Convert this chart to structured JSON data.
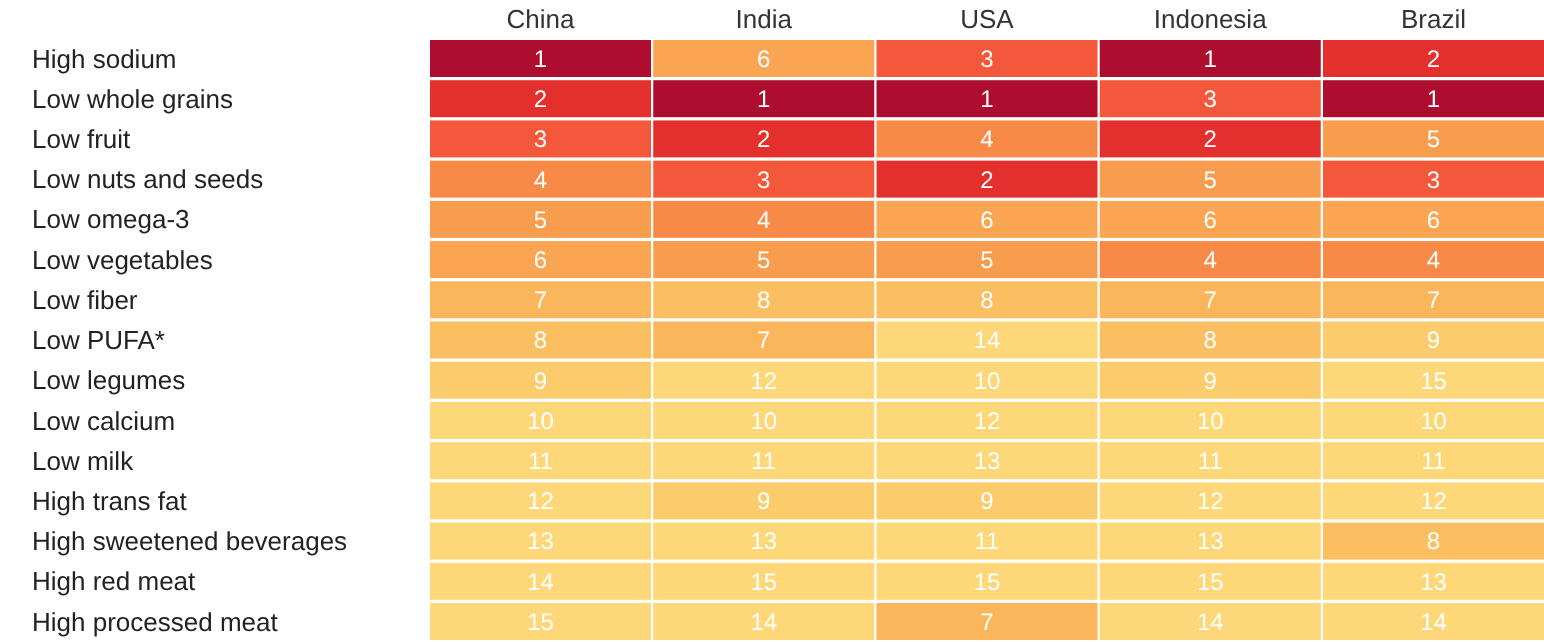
{
  "chart_data": {
    "type": "heatmap",
    "categories": [
      "China",
      "India",
      "USA",
      "Indonesia",
      "Brazil"
    ],
    "y_categories": [
      "High sodium",
      "Low whole grains",
      "Low fruit",
      "Low nuts and seeds",
      "Low omega-3",
      "Low vegetables",
      "Low fiber",
      "Low PUFA*",
      "Low legumes",
      "Low calcium",
      "Low milk",
      "High trans fat",
      "High sweetened beverages",
      "High red meat",
      "High processed meat"
    ],
    "cells": [
      [
        1,
        6,
        3,
        1,
        2
      ],
      [
        2,
        1,
        1,
        3,
        1
      ],
      [
        3,
        2,
        4,
        2,
        5
      ],
      [
        4,
        3,
        2,
        5,
        3
      ],
      [
        5,
        4,
        6,
        6,
        6
      ],
      [
        6,
        5,
        5,
        4,
        4
      ],
      [
        7,
        8,
        8,
        7,
        7
      ],
      [
        8,
        7,
        14,
        8,
        9
      ],
      [
        9,
        12,
        10,
        9,
        15
      ],
      [
        10,
        10,
        12,
        10,
        10
      ],
      [
        11,
        11,
        13,
        11,
        11
      ],
      [
        12,
        9,
        9,
        12,
        12
      ],
      [
        13,
        13,
        11,
        13,
        8
      ],
      [
        14,
        15,
        15,
        15,
        13
      ],
      [
        15,
        14,
        7,
        14,
        14
      ]
    ],
    "data_labels": true
  }
}
